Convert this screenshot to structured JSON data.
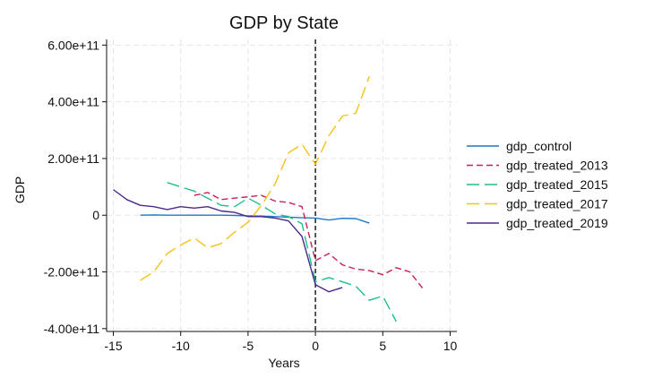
{
  "chart_data": {
    "type": "line",
    "title": "GDP by State",
    "xlabel": "Years",
    "ylabel": "GDP",
    "xlim": [
      -15.5,
      10.5
    ],
    "ylim": [
      -410000000000.0,
      620000000000.0
    ],
    "x_ticks": [
      -15,
      -10,
      -5,
      0,
      5,
      10
    ],
    "x_tick_labels": [
      "-15",
      "-10",
      "-5",
      "0",
      "5",
      "10"
    ],
    "y_ticks": [
      -400000000000.0,
      -200000000000.0,
      0,
      200000000000.0,
      400000000000.0,
      600000000000.0
    ],
    "y_tick_labels": [
      "-4.00e+11",
      "-2.00e+11",
      "0",
      "2.00e+11",
      "4.00e+11",
      "6.00e+11"
    ],
    "grid": true,
    "vline_x": 0,
    "legend_position": "right",
    "series": [
      {
        "name": "gdp_control",
        "color": "#1f77c8",
        "dash": "solid",
        "x": [
          -13,
          -12,
          -11,
          -10,
          -9,
          -8,
          -7,
          -6,
          -5,
          -4,
          -3,
          -2,
          -1,
          0,
          1,
          2,
          3,
          4
        ],
        "y": [
          0,
          1000000000.0,
          0,
          0,
          0,
          0,
          0,
          -1000000000.0,
          -2000000000.0,
          -3000000000.0,
          -5000000000.0,
          -7000000000.0,
          -9000000000.0,
          -10000000000.0,
          -17000000000.0,
          -11000000000.0,
          -12000000000.0,
          -28000000000.0
        ]
      },
      {
        "name": "gdp_treated_2013",
        "color": "#c81e5a",
        "dash": "7,4",
        "x": [
          -9,
          -8,
          -7,
          -6,
          -5,
          -4,
          -3,
          -2,
          -1,
          0,
          1,
          2,
          3,
          4,
          5,
          6,
          7,
          8
        ],
        "y": [
          70000000000.0,
          80000000000.0,
          55000000000.0,
          60000000000.0,
          65000000000.0,
          70000000000.0,
          50000000000.0,
          45000000000.0,
          30000000000.0,
          -160000000000.0,
          -135000000000.0,
          -175000000000.0,
          -190000000000.0,
          -195000000000.0,
          -210000000000.0,
          -185000000000.0,
          -200000000000.0,
          -260000000000.0
        ]
      },
      {
        "name": "gdp_treated_2015",
        "color": "#1fbf8a",
        "dash": "14,6",
        "x": [
          -11,
          -10,
          -9,
          -8,
          -7,
          -6,
          -5,
          -4,
          -3,
          -2,
          -1,
          0,
          1,
          2,
          3,
          4,
          5,
          6
        ],
        "y": [
          115000000000.0,
          100000000000.0,
          85000000000.0,
          60000000000.0,
          35000000000.0,
          30000000000.0,
          60000000000.0,
          35000000000.0,
          5000000000.0,
          -5000000000.0,
          -30000000000.0,
          -235000000000.0,
          -220000000000.0,
          -235000000000.0,
          -250000000000.0,
          -300000000000.0,
          -285000000000.0,
          -375000000000.0
        ]
      },
      {
        "name": "gdp_treated_2017",
        "color": "#f5c314",
        "dash": "14,6",
        "x": [
          -13,
          -12,
          -11,
          -10,
          -9,
          -8,
          -7,
          -6,
          -5,
          -4,
          -3,
          -2,
          -1,
          0,
          1,
          2,
          3,
          4
        ],
        "y": [
          -230000000000.0,
          -200000000000.0,
          -135000000000.0,
          -105000000000.0,
          -80000000000.0,
          -115000000000.0,
          -100000000000.0,
          -60000000000.0,
          -25000000000.0,
          35000000000.0,
          110000000000.0,
          220000000000.0,
          250000000000.0,
          180000000000.0,
          280000000000.0,
          350000000000.0,
          360000000000.0,
          490000000000.0
        ]
      },
      {
        "name": "gdp_treated_2019",
        "color": "#4b2a8a",
        "dash": "solid",
        "x": [
          -15,
          -14,
          -13,
          -12,
          -11,
          -10,
          -9,
          -8,
          -7,
          -6,
          -5,
          -4,
          -3,
          -2,
          -1,
          0,
          1,
          2
        ],
        "y": [
          90000000000.0,
          55000000000.0,
          35000000000.0,
          30000000000.0,
          20000000000.0,
          30000000000.0,
          25000000000.0,
          30000000000.0,
          15000000000.0,
          10000000000.0,
          -5000000000.0,
          -5000000000.0,
          -10000000000.0,
          -20000000000.0,
          -75000000000.0,
          -245000000000.0,
          -270000000000.0,
          -255000000000.0
        ]
      }
    ]
  }
}
